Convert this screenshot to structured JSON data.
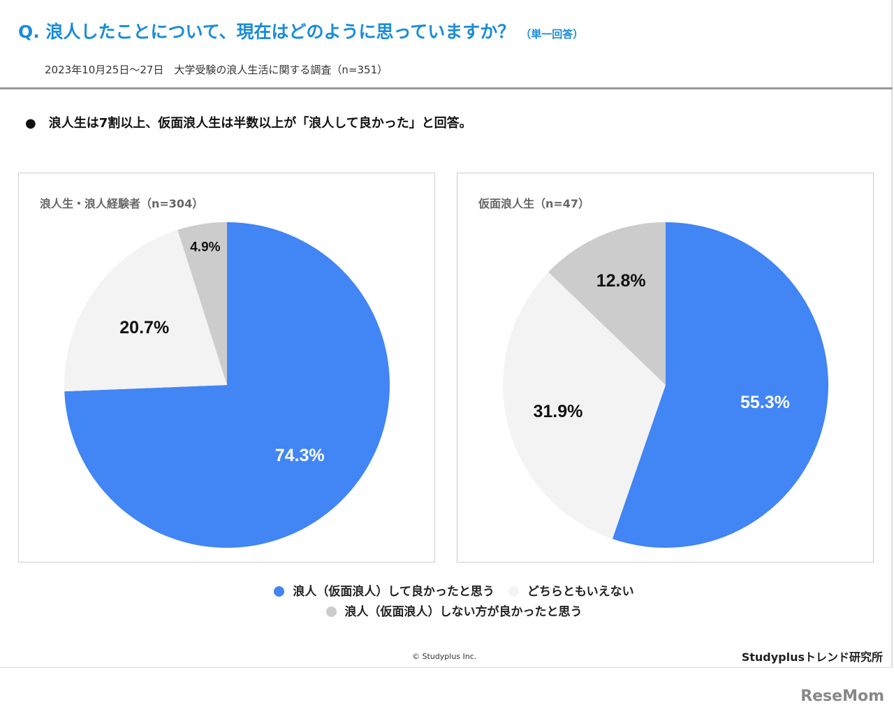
{
  "header": {
    "title": "Q. 浪人したことについて、現在はどのように思っていますか？",
    "title_note": "（単一回答）",
    "subtitle": "2023年10月25日〜27日　大学受験の浪人生活に関する調査（n=351）"
  },
  "summary": "●　浪人生は7割以上、仮面浪人生は半数以上が「浪人して良かった」と回答。",
  "chart_data": [
    {
      "type": "pie",
      "title": "浪人生・浪人経験者（n=304）",
      "labels": [
        "浪人（仮面浪人）して良かったと思う",
        "どちらともいえない",
        "浪人（仮面浪人）しない方が良かったと思う"
      ],
      "values": [
        74.3,
        20.7,
        4.9
      ],
      "value_labels": [
        "74.3%",
        "20.7%",
        "4.9%"
      ]
    },
    {
      "type": "pie",
      "title": "仮面浪人生（n=47）",
      "labels": [
        "浪人（仮面浪人）して良かったと思う",
        "どちらともいえない",
        "浪人（仮面浪人）しない方が良かったと思う"
      ],
      "values": [
        55.3,
        31.9,
        12.8
      ],
      "value_labels": [
        "55.3%",
        "31.9%",
        "12.8%"
      ]
    }
  ],
  "colors": [
    "#4285f4",
    "#f3f3f3",
    "#cccccc"
  ],
  "label_colors": [
    "#ffffff",
    "#111111",
    "#111111"
  ],
  "legend": [
    "浪人（仮面浪人）して良かったと思う",
    "どちらともいえない",
    "浪人（仮面浪人）しない方が良かったと思う"
  ],
  "footer": {
    "copyright": "© Studyplus Inc.",
    "brand": "Studyplusトレンド研究所",
    "watermark": "ReseMom"
  }
}
